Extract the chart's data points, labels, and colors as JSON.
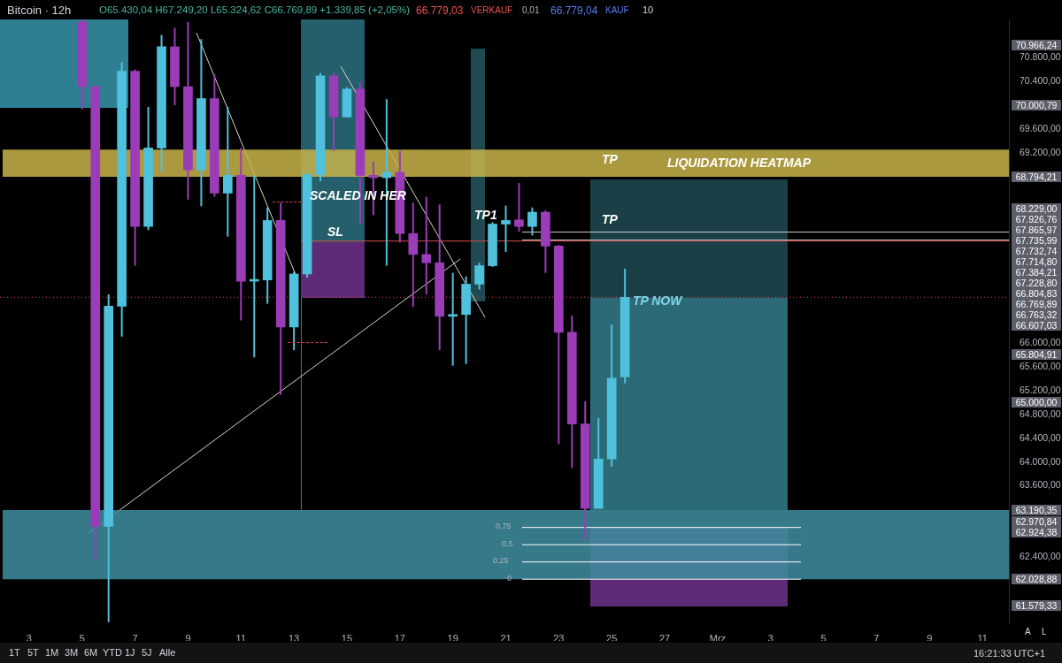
{
  "chart_data": {
    "type": "candlestick",
    "title": "Bitcoin · 12h",
    "subtitle": "O65.430,04 H67.249,20 L65.324,62 C66.769,89 +1.339,85 (+2,05%)",
    "categories": [
      null,
      null,
      "3",
      null,
      null,
      null,
      "5",
      null,
      null,
      null,
      "7",
      null,
      null,
      null,
      "9",
      null,
      null,
      null,
      "11",
      null,
      null,
      null,
      "13",
      null,
      null,
      null,
      "15",
      null,
      null,
      null,
      "17",
      null,
      null,
      null,
      "19",
      null,
      null,
      null,
      "21",
      null,
      null,
      null,
      "23",
      null,
      null,
      null,
      "25",
      null,
      null,
      null,
      "27",
      null,
      null,
      null,
      "Mrz",
      null,
      null,
      null,
      "3",
      null,
      null,
      null,
      "5",
      null,
      null,
      null,
      "7",
      null,
      null,
      null,
      "9",
      null,
      null,
      null,
      "11",
      null,
      null
    ],
    "ohlc": [
      null,
      null,
      null,
      null,
      null,
      null,
      [
        71400,
        71440,
        69930,
        70310
      ],
      [
        70310,
        70330,
        62330,
        62920
      ],
      [
        62920,
        66820,
        61310,
        66620
      ],
      [
        66620,
        70720,
        66110,
        70570
      ],
      [
        70570,
        70600,
        67300,
        67960
      ],
      [
        67960,
        69970,
        67900,
        69280
      ],
      [
        69280,
        71180,
        68870,
        70980
      ],
      [
        70980,
        71300,
        70000,
        70310
      ],
      [
        70310,
        71400,
        68410,
        68910
      ],
      [
        68910,
        71110,
        68300,
        70110
      ],
      [
        70110,
        70520,
        68460,
        68520
      ],
      [
        68520,
        69970,
        67790,
        68820
      ],
      [
        68820,
        69280,
        66380,
        67040
      ],
      [
        67040,
        68820,
        65760,
        67060
      ],
      [
        67060,
        68280,
        66660,
        68060
      ],
      [
        68060,
        68360,
        65130,
        66270
      ],
      [
        66270,
        67200,
        65880,
        67160
      ],
      [
        67160,
        68870,
        67100,
        68830
      ],
      [
        68830,
        70540,
        68720,
        70490
      ],
      [
        70490,
        70540,
        69230,
        69800
      ],
      [
        69800,
        70300,
        69800,
        70270
      ],
      [
        70270,
        70390,
        68000,
        68820
      ],
      [
        68820,
        69050,
        68150,
        68780
      ],
      [
        68780,
        70100,
        67300,
        68870
      ],
      [
        68870,
        69230,
        67690,
        67840
      ],
      [
        67840,
        68360,
        66610,
        67490
      ],
      [
        67490,
        68460,
        66820,
        67350
      ],
      [
        67350,
        68330,
        65880,
        66450
      ],
      [
        66450,
        67180,
        65620,
        66480
      ],
      [
        66480,
        67120,
        65650,
        66990
      ],
      [
        66990,
        67350,
        66900,
        67300
      ],
      [
        67300,
        68030,
        67280,
        68000
      ],
      [
        68000,
        68310,
        67530,
        68060
      ],
      [
        68070,
        68690,
        67870,
        67960
      ],
      [
        67960,
        68280,
        67810,
        68200
      ],
      [
        68200,
        68230,
        67180,
        67630
      ],
      [
        67630,
        67650,
        64300,
        66180
      ],
      [
        66180,
        66460,
        63900,
        64640
      ],
      [
        64640,
        65020,
        62700,
        63220
      ],
      [
        63220,
        64740,
        63220,
        64050
      ],
      [
        64050,
        66310,
        63920,
        65410
      ],
      [
        65430.04,
        67249.2,
        65324.62,
        66769.89
      ],
      null,
      null,
      null,
      null,
      null,
      null,
      null,
      null,
      null,
      null,
      null,
      null,
      null,
      null,
      null,
      null,
      null,
      null,
      null,
      null,
      null,
      null,
      null,
      null,
      null,
      null,
      null,
      null,
      null
    ],
    "colors": [
      null,
      null,
      null,
      null,
      null,
      null,
      "#9b3db8",
      "#9b3db8",
      "#4fc1dc",
      "#4fc1dc",
      "#9b3db8",
      "#4fc1dc",
      "#4fc1dc",
      "#9b3db8",
      "#9b3db8",
      "#4fc1dc",
      "#9b3db8",
      "#4fc1dc",
      "#9b3db8",
      "#4fc1dc",
      "#4fc1dc",
      "#9b3db8",
      "#4fc1dc",
      "#4fc1dc",
      "#4fc1dc",
      "#9b3db8",
      "#4fc1dc",
      "#9b3db8",
      "#9b3db8",
      "#4fc1dc",
      "#9b3db8",
      "#9b3db8",
      "#9b3db8",
      "#9b3db8",
      "#4fc1dc",
      "#4fc1dc",
      "#4fc1dc",
      "#4fc1dc",
      "#4fc1dc",
      "#9b3db8",
      "#4fc1dc",
      "#9b3db8",
      "#9b3db8",
      "#9b3db8",
      "#9b3db8",
      "#4fc1dc",
      "#4fc1dc",
      "#4fc1dc",
      null,
      null,
      null,
      null,
      null,
      null,
      null,
      null,
      null,
      null,
      null,
      null,
      null,
      null,
      null,
      null,
      null,
      null,
      null,
      null,
      null,
      null,
      null,
      null,
      null,
      null,
      null,
      null,
      null
    ],
    "ylim": [
      61290,
      71440
    ],
    "yticks": [
      {
        "value": 70800,
        "label": "70.800,00"
      },
      {
        "value": 70400,
        "label": "70.400,00"
      },
      {
        "value": 69600,
        "label": "69.600,00"
      },
      {
        "value": 69200,
        "label": "69.200,00"
      },
      {
        "value": 66000,
        "label": "66.000,00"
      },
      {
        "value": 65600,
        "label": "65.600,00"
      },
      {
        "value": 65200,
        "label": "65.200,00"
      },
      {
        "value": 64800,
        "label": "64.800,00"
      },
      {
        "value": 64400,
        "label": "64.400,00"
      },
      {
        "value": 64000,
        "label": "64.000,00"
      },
      {
        "value": 63600,
        "label": "63.600,00"
      },
      {
        "value": 62400,
        "label": "62.400,00"
      }
    ],
    "bands": [
      {
        "axis": "y",
        "from": 68794.21,
        "to": 69250,
        "label": "LIQUIDATION HEATMAP",
        "color": "#c8b44a"
      },
      {
        "axis": "y",
        "from": 62028.88,
        "to": 63190.35,
        "color": "#3f8ea0"
      }
    ],
    "ref_lines": [
      {
        "axis": "y",
        "value": 67865.97,
        "color": "#c8c8c8"
      },
      {
        "axis": "y",
        "value": 67732.74,
        "color": "#c8c8c8"
      },
      {
        "axis": "y",
        "value": 67714.8,
        "label": "SL",
        "color": "#d84a4a"
      },
      {
        "axis": "y",
        "value": 66769.89,
        "color": "#d84a4a",
        "line_style": "dotted"
      },
      {
        "axis": "y",
        "value": 62900,
        "color": "#ffffff"
      },
      {
        "axis": "y",
        "value": 62610,
        "color": "#ffffff"
      },
      {
        "axis": "y",
        "value": 62320,
        "color": "#ffffff"
      },
      {
        "axis": "y",
        "value": 62030,
        "color": "#ffffff"
      }
    ],
    "annotations": [
      "TP",
      "TP",
      "TP1",
      "SCALED IN HER",
      "TP NOW",
      "66.779,03",
      "VERKAUF",
      "0,01",
      "66.779,04",
      "KAUF",
      "10",
      "1T",
      "5T",
      "1M",
      "3M",
      "6M",
      "YTD",
      "1J",
      "5J",
      "Alle",
      "16:21:33 UTC+1",
      "A",
      "L",
      "70.966,24",
      "70.000,79",
      "68.794,21",
      "68.229,00",
      "67.926,76",
      "67.865,97",
      "67.735,99",
      "67.732,74",
      "67.714,80",
      "67.384,21",
      "67.228,80",
      "66.804,83",
      "66.769,89",
      "66.763,32",
      "66.607,03",
      "65.804,91",
      "65.000,00",
      "63.190,35",
      "62.970,84",
      "62.924,38",
      "62.028,88",
      "61.579,33",
      "0,75",
      "0,5",
      "0,25",
      "0"
    ]
  }
}
